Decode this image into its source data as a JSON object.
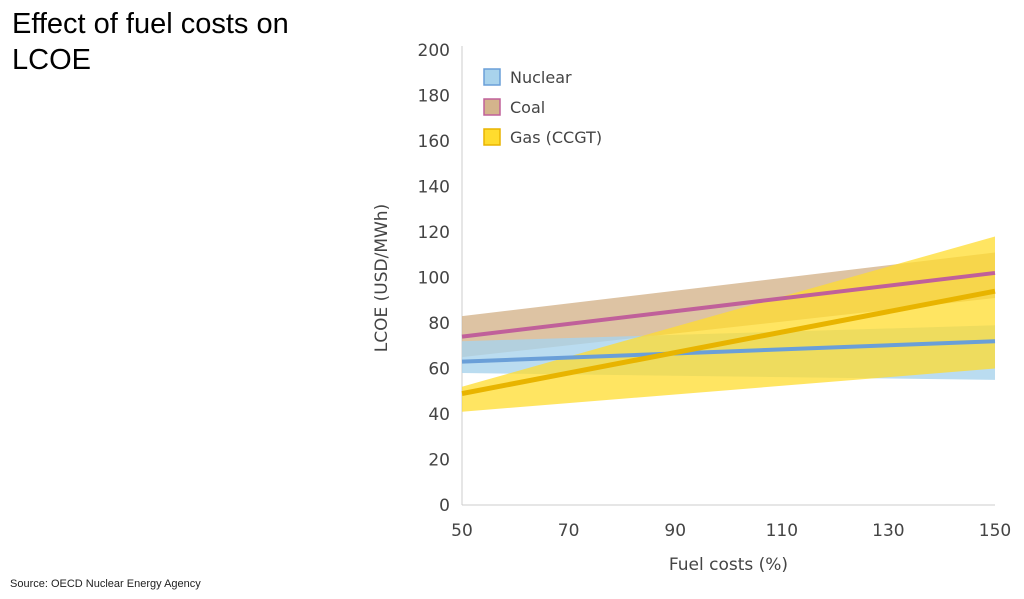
{
  "title": "Effect of fuel costs on LCOE",
  "source": "Source: OECD Nuclear Energy Agency",
  "chart_data": {
    "type": "line",
    "title": "Effect of fuel costs on LCOE",
    "xlabel": "Fuel costs (%)",
    "ylabel": "LCOE (USD/MWh)",
    "xlim": [
      50,
      150
    ],
    "ylim": [
      0,
      200
    ],
    "xticks": [
      50,
      70,
      90,
      110,
      130,
      150
    ],
    "yticks": [
      0,
      20,
      40,
      60,
      80,
      100,
      120,
      140,
      160,
      180,
      200
    ],
    "grid": false,
    "legend_position": "top-left",
    "x": [
      50,
      150
    ],
    "series": [
      {
        "name": "Nuclear",
        "values": [
          63,
          72
        ],
        "band_low": [
          58,
          55
        ],
        "band_high": [
          72,
          79
        ],
        "line_color": "#6a9fd8",
        "band_color": "#a9d3ec"
      },
      {
        "name": "Coal",
        "values": [
          74,
          102
        ],
        "band_low": [
          65,
          91
        ],
        "band_high": [
          83,
          111
        ],
        "line_color": "#c0609a",
        "band_color": "#d4b48c"
      },
      {
        "name": "Gas (CCGT)",
        "values": [
          49,
          94
        ],
        "band_low": [
          41,
          60
        ],
        "band_high": [
          52,
          118
        ],
        "line_color": "#e8b400",
        "band_color": "#ffdc2e"
      }
    ]
  }
}
